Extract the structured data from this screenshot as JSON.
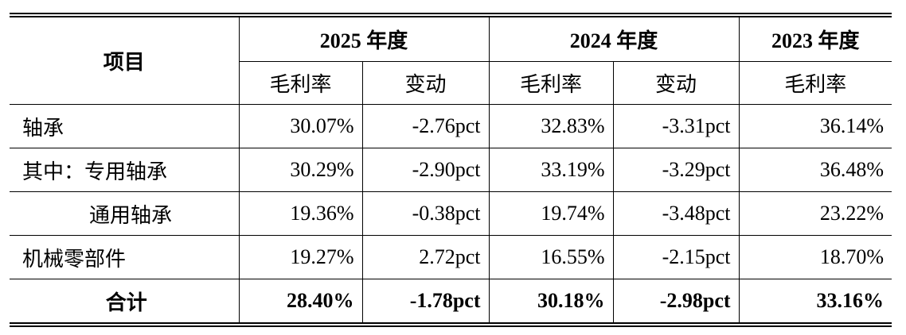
{
  "table": {
    "header": {
      "item": "项目",
      "years": [
        "2025 年度",
        "2024 年度",
        "2023 年度"
      ],
      "sub": [
        "毛利率",
        "变动",
        "毛利率",
        "变动",
        "毛利率"
      ]
    },
    "rows": [
      [
        "轴承",
        "30.07%",
        "-2.76pct",
        "32.83%",
        "-3.31pct",
        "36.14%"
      ],
      [
        "其中：专用轴承",
        "30.29%",
        "-2.90pct",
        "33.19%",
        "-3.29pct",
        "36.48%"
      ],
      [
        "通用轴承",
        "19.36%",
        "-0.38pct",
        "19.74%",
        "-3.48pct",
        "23.22%"
      ],
      [
        "机械零部件",
        "19.27%",
        "2.72pct",
        "16.55%",
        "-2.15pct",
        "18.70%"
      ],
      [
        "合计",
        "28.40%",
        "-1.78pct",
        "30.18%",
        "-2.98pct",
        "33.16%"
      ]
    ]
  }
}
